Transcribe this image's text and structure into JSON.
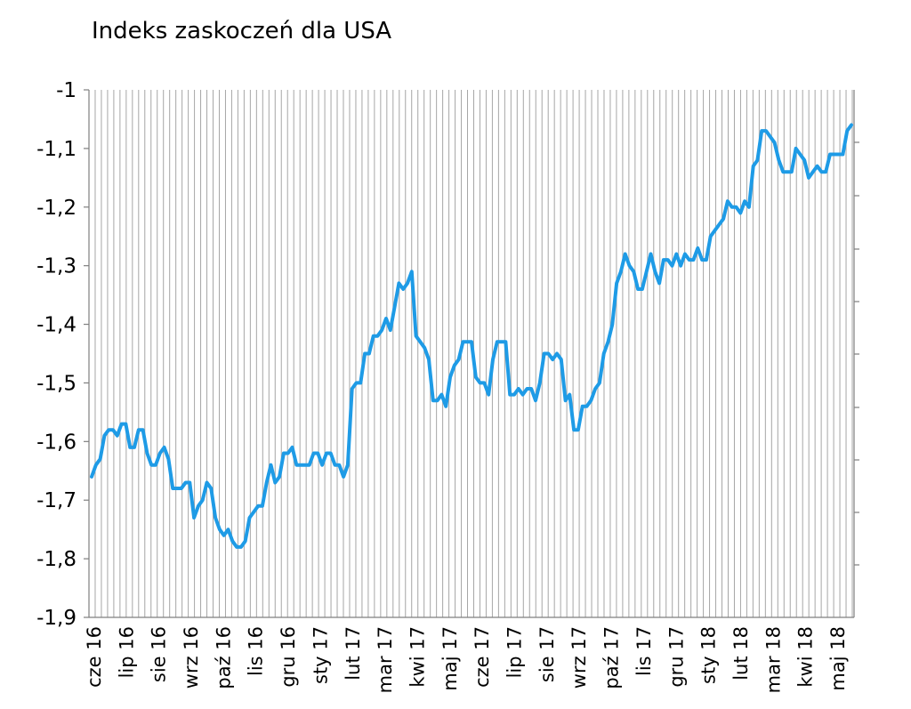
{
  "chart_data": {
    "type": "line",
    "title": "Indeks zaskoczeń dla USA",
    "xlabel": "",
    "ylabel": "",
    "ylim": [
      -1.9,
      -1.0
    ],
    "y_ticks": [
      "-1",
      "-1,1",
      "-1,2",
      "-1,3",
      "-1,4",
      "-1,5",
      "-1,6",
      "-1,7",
      "-1,8",
      "-1,9"
    ],
    "x_ticks": [
      "cze 16",
      "lip 16",
      "sie 16",
      "wrz 16",
      "paź 16",
      "lis 16",
      "gru 16",
      "sty 17",
      "lut 17",
      "mar 17",
      "kwi 17",
      "maj 17",
      "cze 17",
      "lip 17",
      "sie 17",
      "wrz 17",
      "paź 17",
      "lis 17",
      "gru 17",
      "sty 18",
      "lut 18",
      "mar 18",
      "kwi 18",
      "maj 18"
    ],
    "grid": "vertical",
    "line_color": "#1e9be6",
    "series": [
      {
        "values": [
          -1.66,
          -1.64,
          -1.63,
          -1.59,
          -1.58,
          -1.58,
          -1.59,
          -1.57,
          -1.57,
          -1.61,
          -1.61,
          -1.58,
          -1.58,
          -1.62,
          -1.64,
          -1.64,
          -1.62,
          -1.61,
          -1.63,
          -1.68,
          -1.68,
          -1.68,
          -1.67,
          -1.67,
          -1.73,
          -1.71,
          -1.7,
          -1.67,
          -1.68,
          -1.73,
          -1.75,
          -1.76,
          -1.75,
          -1.77,
          -1.78,
          -1.78,
          -1.77,
          -1.73,
          -1.72,
          -1.71,
          -1.71,
          -1.67,
          -1.64,
          -1.67,
          -1.66,
          -1.62,
          -1.62,
          -1.61,
          -1.64,
          -1.64,
          -1.64,
          -1.64,
          -1.62,
          -1.62,
          -1.64,
          -1.62,
          -1.62,
          -1.64,
          -1.64,
          -1.66,
          -1.64,
          -1.51,
          -1.5,
          -1.5,
          -1.45,
          -1.45,
          -1.42,
          -1.42,
          -1.41,
          -1.39,
          -1.41,
          -1.37,
          -1.33,
          -1.34,
          -1.33,
          -1.31,
          -1.42,
          -1.43,
          -1.44,
          -1.46,
          -1.53,
          -1.53,
          -1.52,
          -1.54,
          -1.49,
          -1.47,
          -1.46,
          -1.43,
          -1.43,
          -1.43,
          -1.49,
          -1.5,
          -1.5,
          -1.52,
          -1.46,
          -1.43,
          -1.43,
          -1.43,
          -1.52,
          -1.52,
          -1.51,
          -1.52,
          -1.51,
          -1.51,
          -1.53,
          -1.5,
          -1.45,
          -1.45,
          -1.46,
          -1.45,
          -1.46,
          -1.53,
          -1.52,
          -1.58,
          -1.58,
          -1.54,
          -1.54,
          -1.53,
          -1.51,
          -1.5,
          -1.45,
          -1.43,
          -1.4,
          -1.33,
          -1.31,
          -1.28,
          -1.3,
          -1.31,
          -1.34,
          -1.34,
          -1.31,
          -1.28,
          -1.31,
          -1.33,
          -1.29,
          -1.29,
          -1.3,
          -1.28,
          -1.3,
          -1.28,
          -1.29,
          -1.29,
          -1.27,
          -1.29,
          -1.29,
          -1.25,
          -1.24,
          -1.23,
          -1.22,
          -1.19,
          -1.2,
          -1.2,
          -1.21,
          -1.19,
          -1.2,
          -1.13,
          -1.12,
          -1.07,
          -1.07,
          -1.08,
          -1.09,
          -1.12,
          -1.14,
          -1.14,
          -1.14,
          -1.1,
          -1.11,
          -1.12,
          -1.15,
          -1.14,
          -1.13,
          -1.14,
          -1.14,
          -1.11,
          -1.11,
          -1.11,
          -1.11,
          -1.07,
          -1.06
        ]
      }
    ]
  }
}
